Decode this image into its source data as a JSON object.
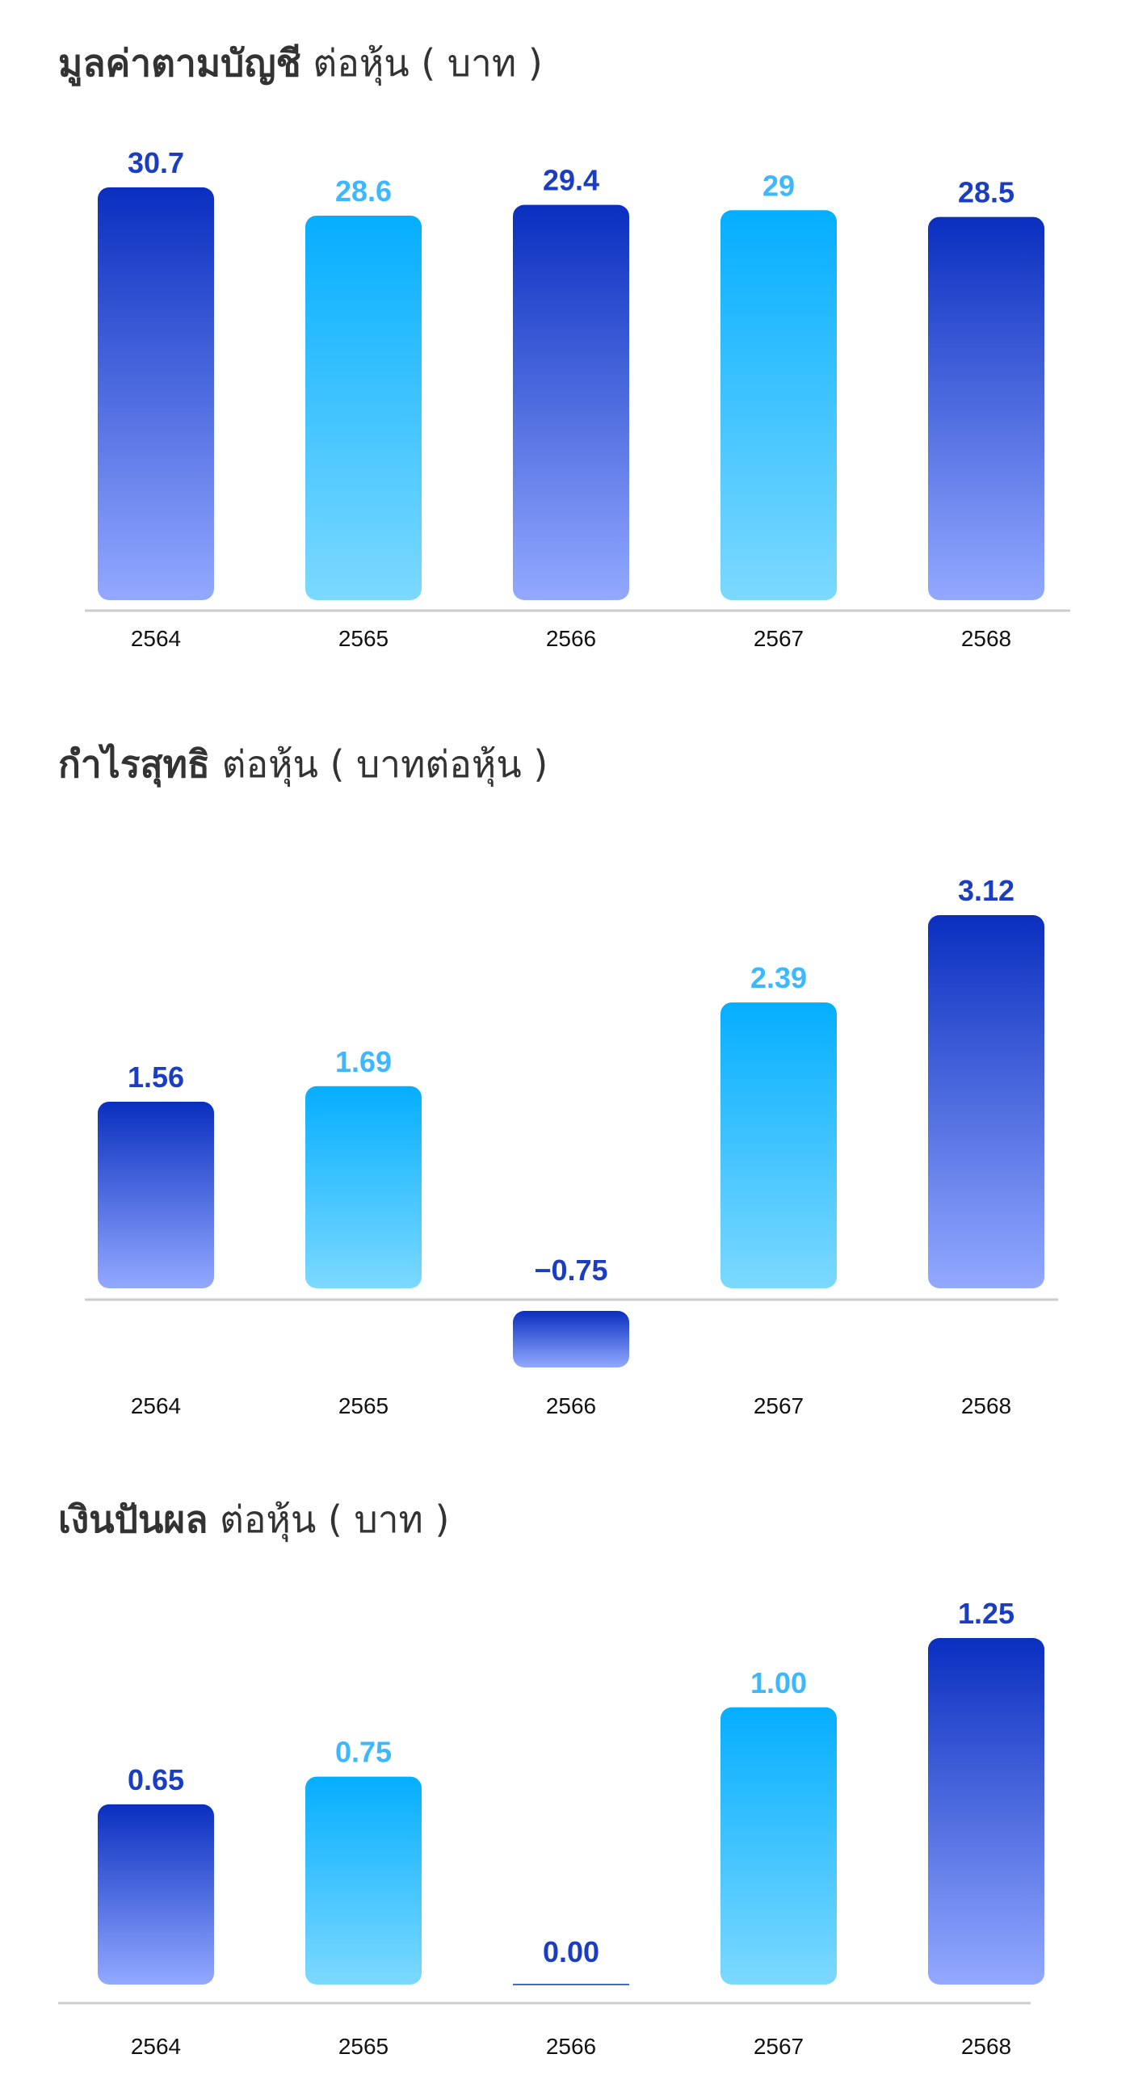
{
  "colors": {
    "dark_top": "#0A2FBF",
    "dark_bottom": "#93A9FF",
    "light_top": "#05AEFF",
    "light_bottom": "#7CD9FF",
    "dark_label": "#1B3DC2",
    "light_label": "#3DB8FF",
    "axis": "#CCCCCC"
  },
  "chart_data": [
    {
      "type": "bar",
      "title_bold": "มูลค่าตามบัญชี",
      "title_rest": " ต่อหุ้น ( บาท )",
      "categories": [
        "2564",
        "2565",
        "2566",
        "2567",
        "2568"
      ],
      "values": [
        30.7,
        28.6,
        29.4,
        29,
        28.5
      ],
      "value_labels": [
        "30.7",
        "28.6",
        "29.4",
        "29",
        "28.5"
      ],
      "ylim": [
        0,
        30.7
      ]
    },
    {
      "type": "bar",
      "title_bold": "กำไรสุทธิ",
      "title_rest": " ต่อหุ้น ( บาทต่อหุ้น )",
      "categories": [
        "2564",
        "2565",
        "2566",
        "2567",
        "2568"
      ],
      "values": [
        1.56,
        1.69,
        -0.75,
        2.39,
        3.12
      ],
      "value_labels": [
        "1.56",
        "1.69",
        "−0.75",
        "2.39",
        "3.12"
      ],
      "ylim": [
        -0.75,
        3.12
      ]
    },
    {
      "type": "bar",
      "title_bold": "เงินปันผล",
      "title_rest": " ต่อหุ้น ( บาท )",
      "categories": [
        "2564",
        "2565",
        "2566",
        "2567",
        "2568"
      ],
      "values": [
        0.65,
        0.75,
        0.0,
        1.0,
        1.25
      ],
      "value_labels": [
        "0.65",
        "0.75",
        "0.00",
        "1.00",
        "1.25"
      ],
      "ylim": [
        0,
        1.25
      ]
    }
  ]
}
